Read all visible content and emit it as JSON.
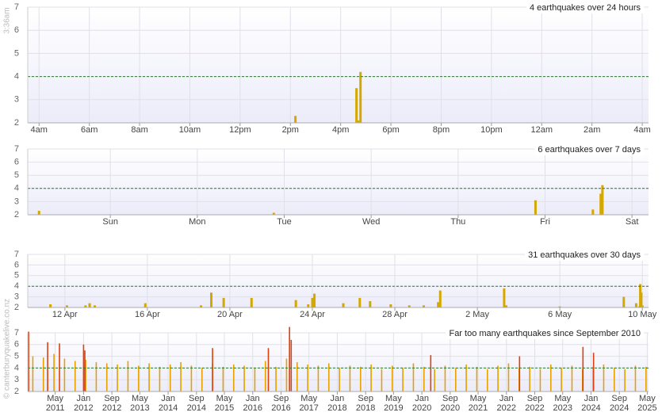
{
  "time_label": "3:36am",
  "copyright": "© canterburyquakelive.co.nz",
  "chart_data": [
    {
      "type": "bar",
      "title": "4 earthquakes over 24 hours",
      "color": "#d4a800",
      "grid": true,
      "reference_line": 4,
      "x": [
        14.2,
        16.63,
        16.7,
        16.79
      ],
      "values": [
        2.3,
        3.5,
        2.1,
        4.2
      ],
      "xlim": [
        3.55,
        28.25
      ],
      "xticks": [
        {
          "value": 4,
          "label": "4am"
        },
        {
          "value": 6,
          "label": "6am"
        },
        {
          "value": 8,
          "label": "8am"
        },
        {
          "value": 10,
          "label": "10am"
        },
        {
          "value": 12,
          "label": "12pm"
        },
        {
          "value": 14,
          "label": "2pm"
        },
        {
          "value": 16,
          "label": "4pm"
        },
        {
          "value": 18,
          "label": "6pm"
        },
        {
          "value": 20,
          "label": "8pm"
        },
        {
          "value": 22,
          "label": "10pm"
        },
        {
          "value": 24,
          "label": "12am"
        },
        {
          "value": 26,
          "label": "2am"
        },
        {
          "value": 28,
          "label": "4am"
        }
      ],
      "ylim": [
        2,
        7
      ],
      "yticks": [
        2,
        3,
        4,
        5,
        6,
        7
      ]
    },
    {
      "type": "bar",
      "title": "6 earthquakes over 7 days",
      "color": "#d4a800",
      "grid": true,
      "reference_line": 4,
      "x": [
        0.18,
        2.88,
        5.89,
        6.55,
        6.64,
        6.66
      ],
      "values": [
        2.3,
        2.15,
        3.1,
        2.4,
        3.6,
        4.25
      ],
      "xlim": [
        0.05,
        7.19
      ],
      "xticks": [
        {
          "value": 1,
          "label": "Sun"
        },
        {
          "value": 2,
          "label": "Mon"
        },
        {
          "value": 3,
          "label": "Tue"
        },
        {
          "value": 4,
          "label": "Wed"
        },
        {
          "value": 5,
          "label": "Thu"
        },
        {
          "value": 6,
          "label": "Fri"
        },
        {
          "value": 7,
          "label": "Sat"
        }
      ],
      "ylim": [
        2,
        7
      ],
      "yticks": [
        2,
        3,
        4,
        5,
        6,
        7
      ]
    },
    {
      "type": "bar",
      "title": "31 earthquakes over 30 days",
      "color": "#d4a800",
      "grid": true,
      "reference_line": 4,
      "x": [
        11.3,
        12.1,
        13.0,
        13.2,
        13.45,
        15.9,
        18.6,
        19.1,
        19.7,
        21.05,
        23.2,
        23.8,
        24.0,
        24.1,
        25.5,
        26.3,
        26.8,
        27.8,
        28.7,
        29.4,
        30.1,
        30.2,
        33.3,
        33.4,
        36.0,
        39.1,
        39.7,
        39.85,
        39.9,
        39.95,
        40.0
      ],
      "values": [
        2.3,
        2.2,
        2.2,
        2.4,
        2.2,
        2.4,
        2.2,
        3.4,
        2.9,
        2.9,
        2.7,
        2.3,
        2.9,
        3.3,
        2.4,
        2.9,
        2.6,
        2.3,
        2.2,
        2.2,
        2.5,
        3.6,
        3.8,
        2.2,
        2.1,
        3.0,
        2.4,
        2.1,
        4.2,
        3.4,
        2.2
      ],
      "xlim": [
        10.2,
        40.3
      ],
      "xticks": [
        {
          "value": 12,
          "label": "12 Apr"
        },
        {
          "value": 16,
          "label": "16 Apr"
        },
        {
          "value": 20,
          "label": "20 Apr"
        },
        {
          "value": 24,
          "label": "24 Apr"
        },
        {
          "value": 28,
          "label": "28 Apr"
        },
        {
          "value": 32,
          "label": "2 May"
        },
        {
          "value": 36,
          "label": "6 May"
        },
        {
          "value": 40,
          "label": "10 May"
        }
      ],
      "ylim": [
        2,
        7
      ],
      "yticks": [
        2,
        3,
        4,
        5,
        6,
        7
      ]
    },
    {
      "type": "bar",
      "title": "Far too many earthquakes since September 2010",
      "grid": true,
      "reference_line": 4,
      "series": [
        {
          "color": "#e6a000",
          "x": [
            2010.8,
            2011.05,
            2011.3,
            2011.55,
            2011.8,
            2012.05,
            2012.3,
            2012.55,
            2012.8,
            2013.05,
            2013.3,
            2013.55,
            2013.8,
            2014.05,
            2014.3,
            2014.55,
            2014.8,
            2015.05,
            2015.3,
            2015.55,
            2015.8,
            2016.05,
            2016.3,
            2016.55,
            2016.8,
            2017.05,
            2017.3,
            2017.55,
            2017.8,
            2018.05,
            2018.3,
            2018.55,
            2018.8,
            2019.05,
            2019.3,
            2019.55,
            2019.8,
            2020.05,
            2020.3,
            2020.55,
            2020.8,
            2021.05,
            2021.3,
            2021.55,
            2021.8,
            2022.05,
            2022.3,
            2022.55,
            2022.8,
            2023.05,
            2023.3,
            2023.55,
            2023.8,
            2024.05,
            2024.3,
            2024.55,
            2024.8,
            2025.05,
            2025.3
          ],
          "values": [
            5.0,
            4.9,
            5.2,
            4.8,
            4.6,
            4.7,
            4.5,
            4.4,
            4.3,
            4.6,
            4.2,
            4.4,
            4.1,
            4.3,
            4.5,
            4.2,
            4.0,
            4.4,
            4.1,
            4.3,
            4.2,
            4.0,
            4.6,
            4.1,
            4.8,
            4.5,
            4.3,
            4.2,
            4.4,
            4.0,
            4.2,
            4.1,
            4.3,
            3.9,
            4.2,
            4.0,
            4.4,
            4.1,
            3.9,
            4.2,
            4.0,
            4.3,
            4.1,
            3.9,
            4.2,
            4.4,
            4.0,
            4.1,
            3.9,
            4.3,
            4.0,
            4.2,
            3.9,
            4.1,
            4.3,
            4.0,
            3.9,
            4.2,
            4.1
          ]
        },
        {
          "color": "#e0400c",
          "x": [
            2010.7,
            2011.15,
            2011.43,
            2012.0,
            2012.03,
            2015.05,
            2016.37,
            2016.87,
            2016.91,
            2020.21,
            2022.31,
            2023.81,
            2024.06
          ],
          "values": [
            7.1,
            6.2,
            6.1,
            6.0,
            5.5,
            5.7,
            5.7,
            7.5,
            6.4,
            5.1,
            5.0,
            5.8,
            5.3
          ]
        }
      ],
      "xlim": [
        2010.68,
        2025.36
      ],
      "xticks": [
        {
          "value": 2011.33,
          "label": "May 2011"
        },
        {
          "value": 2012.0,
          "label": "Jan 2012"
        },
        {
          "value": 2012.67,
          "label": "Sep 2012"
        },
        {
          "value": 2013.33,
          "label": "May 2013"
        },
        {
          "value": 2014.0,
          "label": "Jan 2014"
        },
        {
          "value": 2014.67,
          "label": "Sep 2014"
        },
        {
          "value": 2015.33,
          "label": "May 2015"
        },
        {
          "value": 2016.0,
          "label": "Jan 2016"
        },
        {
          "value": 2016.67,
          "label": "Sep 2016"
        },
        {
          "value": 2017.33,
          "label": "May 2017"
        },
        {
          "value": 2018.0,
          "label": "Jan 2018"
        },
        {
          "value": 2018.67,
          "label": "Sep 2018"
        },
        {
          "value": 2019.33,
          "label": "May 2019"
        },
        {
          "value": 2020.0,
          "label": "Jan 2020"
        },
        {
          "value": 2020.67,
          "label": "Sep 2020"
        },
        {
          "value": 2021.33,
          "label": "May 2021"
        },
        {
          "value": 2022.0,
          "label": "Jan 2022"
        },
        {
          "value": 2022.67,
          "label": "Sep 2022"
        },
        {
          "value": 2023.33,
          "label": "May 2023"
        },
        {
          "value": 2024.0,
          "label": "Jan 2024"
        },
        {
          "value": 2024.67,
          "label": "Sep 2024"
        },
        {
          "value": 2025.33,
          "label": "May 2025"
        }
      ],
      "ylim": [
        2,
        7
      ],
      "yticks": [
        2,
        3,
        4,
        5,
        6,
        7
      ]
    }
  ]
}
